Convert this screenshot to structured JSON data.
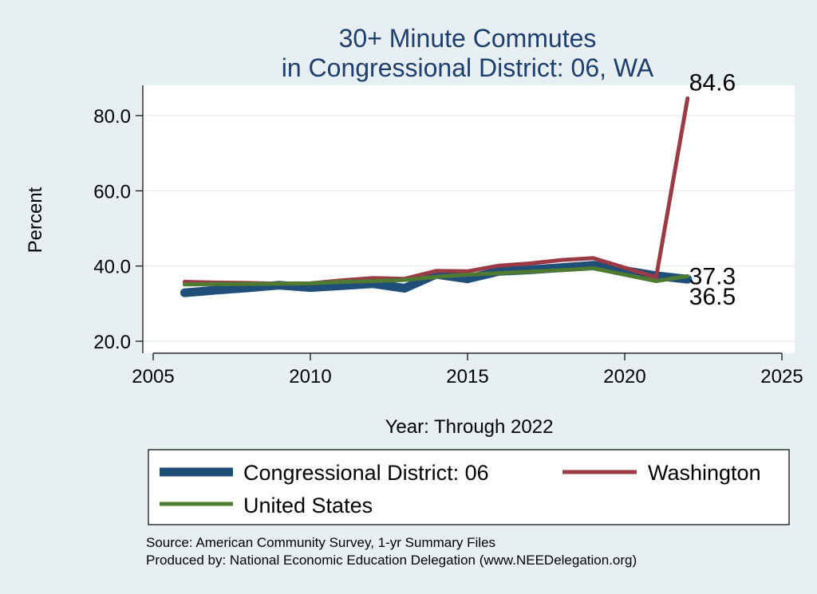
{
  "chart_data": {
    "type": "line",
    "title": [
      "30+ Minute Commutes",
      "in Congressional District:  06, WA"
    ],
    "xlabel": "Year: Through 2022",
    "ylabel": "Percent",
    "xlim": [
      2005,
      2025
    ],
    "ylim": [
      20,
      88
    ],
    "x_ticks": [
      2005,
      2010,
      2015,
      2020,
      2025
    ],
    "x_tick_labels": [
      "2005",
      "2010",
      "2015",
      "2020",
      "2025"
    ],
    "y_ticks": [
      20,
      40,
      60,
      80
    ],
    "y_tick_labels": [
      "20.0",
      "40.0",
      "60.0",
      "80.0"
    ],
    "grid": "horizontal",
    "legend_position": "bottom",
    "series": [
      {
        "name": "Congressional District:  06",
        "color": "#1f4e79",
        "x": [
          2006,
          2007,
          2008,
          2009,
          2010,
          2011,
          2012,
          2013,
          2014,
          2015,
          2016,
          2017,
          2018,
          2019,
          2021,
          2022
        ],
        "values": [
          32.9,
          33.6,
          34.2,
          34.9,
          34.3,
          34.8,
          35.3,
          34.1,
          37.8,
          36.6,
          38.6,
          39.0,
          39.6,
          40.2,
          37.4,
          36.5
        ]
      },
      {
        "name": "Washington",
        "color": "#9a3a44",
        "x": [
          2006,
          2007,
          2008,
          2009,
          2010,
          2011,
          2012,
          2013,
          2014,
          2015,
          2016,
          2017,
          2018,
          2019,
          2021,
          2022
        ],
        "values": [
          35.8,
          35.6,
          35.5,
          35.3,
          35.4,
          36.2,
          36.8,
          36.6,
          38.7,
          38.6,
          40.1,
          40.7,
          41.6,
          42.1,
          37.0,
          84.6
        ]
      },
      {
        "name": "United States",
        "color": "#4f7a32",
        "x": [
          2006,
          2007,
          2008,
          2009,
          2010,
          2011,
          2012,
          2013,
          2014,
          2015,
          2016,
          2017,
          2018,
          2019,
          2021,
          2022
        ],
        "values": [
          35.1,
          35.2,
          35.2,
          35.3,
          35.4,
          35.8,
          36.0,
          36.3,
          37.1,
          37.7,
          38.1,
          38.5,
          38.9,
          39.4,
          36.0,
          37.3
        ]
      }
    ],
    "end_labels": [
      {
        "text": "84.6",
        "series": "Washington"
      },
      {
        "text": "37.3",
        "series": "United States"
      },
      {
        "text": "36.5",
        "series": "Congressional District:  06"
      }
    ],
    "source": [
      "Source: American Community Survey, 1-yr Summary Files",
      "Produced by: National Economic Education Delegation (www.NEEDelegation.org)"
    ]
  }
}
